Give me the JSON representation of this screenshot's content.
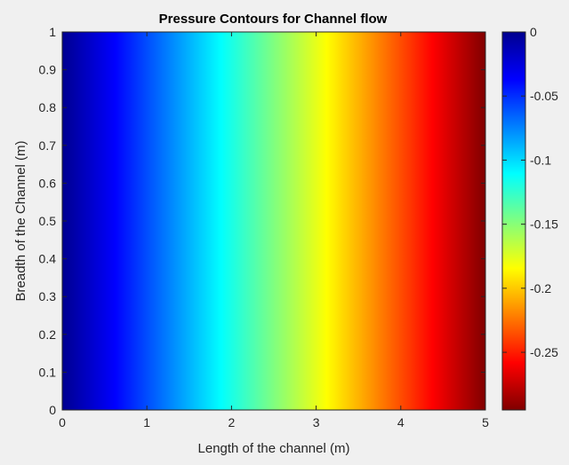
{
  "chart_data": {
    "type": "heatmap",
    "title": "Pressure Contours for Channel flow",
    "xlabel": "Length of the channel (m)",
    "ylabel": "Breadth of the Channel (m)",
    "xlim": [
      0,
      5
    ],
    "ylim": [
      0,
      1
    ],
    "x_ticks": [
      0,
      1,
      2,
      3,
      4,
      5
    ],
    "y_ticks": [
      0,
      0.1,
      0.2,
      0.3,
      0.4,
      0.5,
      0.6,
      0.7,
      0.8,
      0.9,
      1
    ],
    "field": {
      "description_of_variation": "varies linearly along x only; uniform along y",
      "value_at_x_min": 0,
      "value_at_x_max": -0.295
    },
    "colormap": "jet",
    "colorbar": {
      "range": [
        -0.295,
        0
      ],
      "ticks": [
        0,
        -0.05,
        -0.1,
        -0.15,
        -0.2,
        -0.25
      ],
      "tick_labels": [
        "0",
        "-0.05",
        "-0.1",
        "-0.15",
        "-0.2",
        "-0.25"
      ],
      "placement": "right"
    },
    "grid": false
  },
  "colors": {
    "background": "#f0f0f0",
    "axes_edge": "#262626",
    "jet_stops": [
      "#800000",
      "#ff0000",
      "#ffff00",
      "#00ffff",
      "#0000ff",
      "#00008f"
    ]
  }
}
